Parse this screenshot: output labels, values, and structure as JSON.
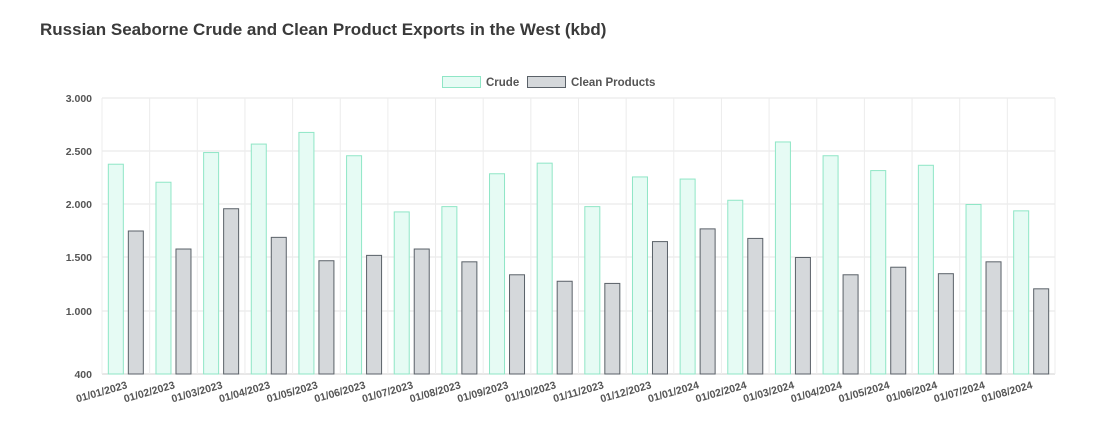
{
  "title": "Russian Seaborne Crude and Clean Product Exports in the West (kbd)",
  "chart_data": {
    "type": "bar",
    "title": "Russian Seaborne Crude and Clean Product Exports in the West (kbd)",
    "xlabel": "",
    "ylabel": "",
    "y_tick_values": [
      400,
      1000,
      1500,
      2000,
      2500,
      3000
    ],
    "y_tick_labels": [
      "400",
      "1.000",
      "1.500",
      "2.000",
      "2.500",
      "3.000"
    ],
    "legend_position": "top-center",
    "grid": true,
    "categories": [
      "01/01/2023",
      "01/02/2023",
      "01/03/2023",
      "01/04/2023",
      "01/05/2023",
      "01/06/2023",
      "01/07/2023",
      "01/08/2023",
      "01/09/2023",
      "01/10/2023",
      "01/11/2023",
      "01/12/2023",
      "01/01/2024",
      "01/02/2024",
      "01/03/2024",
      "01/04/2024",
      "01/05/2024",
      "01/06/2024",
      "01/07/2024",
      "01/08/2024"
    ],
    "series": [
      {
        "name": "Crude",
        "fill": "#e6fbf4",
        "stroke": "#8fe6c6",
        "values": [
          2380,
          2210,
          2490,
          2570,
          2680,
          2460,
          1930,
          1980,
          2290,
          2390,
          1980,
          2260,
          2240,
          2040,
          2590,
          2460,
          2320,
          2370,
          2000,
          1940
        ]
      },
      {
        "name": "Clean Products",
        "fill": "#d5d8db",
        "stroke": "#5a6168",
        "values": [
          1750,
          1580,
          1960,
          1690,
          1470,
          1520,
          1580,
          1460,
          1340,
          1280,
          1260,
          1650,
          1770,
          1680,
          1500,
          1340,
          1410,
          1350,
          1460,
          1210
        ]
      }
    ]
  }
}
